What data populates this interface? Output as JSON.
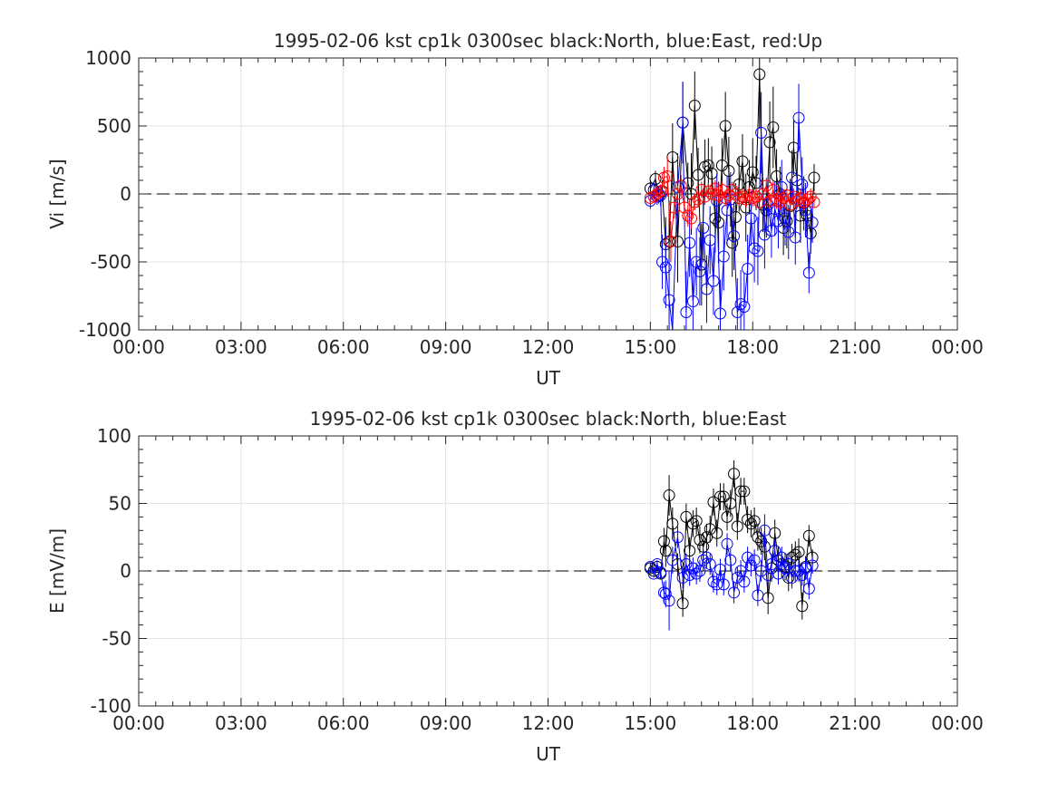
{
  "chart_data": [
    {
      "type": "scatter",
      "title": "1995-02-06 kst cp1k 0300sec black:North, blue:East, red:Up",
      "xlabel": "UT",
      "ylabel": "Vi [m/s]",
      "xlim": [
        0,
        24
      ],
      "ylim": [
        -1000,
        1000
      ],
      "xticks": [
        0,
        3,
        6,
        9,
        12,
        15,
        18,
        21,
        24
      ],
      "xtick_labels": [
        "00:00",
        "03:00",
        "06:00",
        "09:00",
        "12:00",
        "15:00",
        "18:00",
        "21:00",
        "00:00"
      ],
      "yticks": [
        -1000,
        -500,
        0,
        500,
        1000
      ],
      "ytick_labels": [
        "-1000",
        "-500",
        "0",
        "500",
        "1000"
      ],
      "grid": true,
      "zero_line": 0,
      "series": [
        {
          "color": "#000000",
          "x": [
            15.0,
            15.15,
            15.25,
            15.35,
            15.45,
            15.55,
            15.65,
            15.8,
            15.95,
            16.1,
            16.2,
            16.3,
            16.4,
            16.5,
            16.6,
            16.7,
            16.8,
            16.9,
            17.0,
            17.1,
            17.2,
            17.3,
            17.4,
            17.5,
            17.6,
            17.7,
            17.8,
            17.9,
            18.0,
            18.1,
            18.2,
            18.3,
            18.4,
            18.5,
            18.6,
            18.7,
            18.8,
            18.9,
            19.0,
            19.1,
            19.2,
            19.3,
            19.4,
            19.5,
            19.6,
            19.7,
            19.8
          ],
          "y": [
            40,
            110,
            -10,
            20,
            -370,
            -350,
            270,
            -350,
            525,
            80,
            0,
            650,
            140,
            -520,
            200,
            210,
            150,
            -180,
            -210,
            210,
            500,
            170,
            -360,
            -170,
            70,
            240,
            -100,
            50,
            160,
            80,
            880,
            -80,
            -120,
            380,
            490,
            130,
            0,
            -250,
            -200,
            -90,
            340,
            100,
            -160,
            -70,
            -160,
            -290,
            120
          ],
          "err": [
            60,
            60,
            60,
            80,
            200,
            300,
            250,
            300,
            300,
            150,
            300,
            250,
            200,
            300,
            200,
            200,
            200,
            250,
            300,
            200,
            250,
            250,
            250,
            250,
            200,
            200,
            250,
            200,
            250,
            200,
            400,
            200,
            200,
            300,
            300,
            200,
            200,
            200,
            200,
            200,
            200,
            200,
            200,
            200,
            150,
            150,
            100
          ]
        },
        {
          "color": "#0000ff",
          "x": [
            15.0,
            15.1,
            15.2,
            15.3,
            15.35,
            15.45,
            15.55,
            15.65,
            15.8,
            15.95,
            16.05,
            16.15,
            16.25,
            16.35,
            16.45,
            16.55,
            16.65,
            16.75,
            16.85,
            16.95,
            17.05,
            17.15,
            17.25,
            17.35,
            17.45,
            17.55,
            17.65,
            17.75,
            17.85,
            17.95,
            18.05,
            18.15,
            18.25,
            18.35,
            18.45,
            18.55,
            18.65,
            18.75,
            18.85,
            18.95,
            19.05,
            19.15,
            19.25,
            19.35,
            19.45,
            19.55,
            19.65,
            19.75
          ],
          "y": [
            -50,
            30,
            -20,
            -10,
            -500,
            -540,
            -780,
            -1100,
            50,
            525,
            -870,
            -360,
            -790,
            -500,
            -570,
            -250,
            -700,
            -340,
            -640,
            -50,
            -880,
            -460,
            -120,
            -40,
            -310,
            -870,
            -810,
            -830,
            -550,
            -180,
            -400,
            -420,
            450,
            -300,
            -80,
            -270,
            -110,
            -200,
            50,
            -180,
            -280,
            120,
            -320,
            560,
            70,
            -120,
            -580,
            -210
          ],
          "err": [
            60,
            60,
            60,
            80,
            200,
            300,
            300,
            300,
            250,
            300,
            300,
            250,
            300,
            250,
            250,
            250,
            250,
            250,
            250,
            200,
            250,
            250,
            250,
            200,
            250,
            250,
            250,
            250,
            250,
            200,
            250,
            250,
            300,
            250,
            200,
            200,
            200,
            200,
            200,
            200,
            200,
            200,
            200,
            250,
            200,
            200,
            150,
            150
          ]
        },
        {
          "color": "#ff0000",
          "x": [
            15.0,
            15.1,
            15.2,
            15.3,
            15.4,
            15.5,
            15.6,
            15.7,
            15.8,
            15.9,
            16.0,
            16.1,
            16.2,
            16.3,
            16.4,
            16.5,
            16.6,
            16.7,
            16.8,
            16.9,
            17.0,
            17.1,
            17.2,
            17.3,
            17.4,
            17.5,
            17.6,
            17.7,
            17.8,
            17.9,
            18.0,
            18.1,
            18.2,
            18.3,
            18.4,
            18.5,
            18.6,
            18.7,
            18.8,
            18.9,
            19.0,
            19.1,
            19.2,
            19.3,
            19.4,
            19.5,
            19.6,
            19.7,
            19.8
          ],
          "y": [
            -30,
            -20,
            0,
            20,
            120,
            130,
            -350,
            -100,
            0,
            60,
            -100,
            -160,
            -180,
            -60,
            -40,
            30,
            -20,
            20,
            0,
            40,
            -10,
            30,
            -30,
            -10,
            30,
            0,
            -30,
            -20,
            -40,
            -10,
            -30,
            -20,
            -60,
            0,
            60,
            -50,
            30,
            -50,
            -60,
            -30,
            -10,
            -80,
            -20,
            -50,
            -30,
            -60,
            -40,
            -20,
            -60
          ],
          "err": [
            40,
            40,
            40,
            50,
            80,
            150,
            150,
            80,
            60,
            80,
            80,
            80,
            80,
            60,
            60,
            60,
            60,
            60,
            60,
            60,
            60,
            60,
            60,
            60,
            60,
            60,
            60,
            60,
            60,
            60,
            60,
            60,
            60,
            60,
            60,
            60,
            60,
            60,
            60,
            60,
            60,
            60,
            60,
            60,
            60,
            60,
            60,
            60,
            40
          ]
        }
      ]
    },
    {
      "type": "scatter",
      "title": "1995-02-06 kst cp1k 0300sec black:North, blue:East",
      "xlabel": "UT",
      "ylabel": "E [mV/m]",
      "xlim": [
        0,
        24
      ],
      "ylim": [
        -100,
        100
      ],
      "xticks": [
        0,
        3,
        6,
        9,
        12,
        15,
        18,
        21,
        24
      ],
      "xtick_labels": [
        "00:00",
        "03:00",
        "06:00",
        "09:00",
        "12:00",
        "15:00",
        "18:00",
        "21:00",
        "00:00"
      ],
      "yticks": [
        -100,
        -50,
        0,
        50,
        100
      ],
      "ytick_labels": [
        "-100",
        "-50",
        "0",
        "50",
        "100"
      ],
      "grid": true,
      "zero_line": 0,
      "series": [
        {
          "color": "#000000",
          "x": [
            15.0,
            15.1,
            15.2,
            15.3,
            15.4,
            15.45,
            15.55,
            15.65,
            15.8,
            15.95,
            16.05,
            16.15,
            16.25,
            16.35,
            16.45,
            16.55,
            16.65,
            16.75,
            16.85,
            16.95,
            17.05,
            17.15,
            17.25,
            17.35,
            17.45,
            17.55,
            17.65,
            17.75,
            17.85,
            17.95,
            18.05,
            18.15,
            18.25,
            18.35,
            18.45,
            18.55,
            18.65,
            18.75,
            18.85,
            18.95,
            19.05,
            19.15,
            19.25,
            19.35,
            19.45,
            19.55,
            19.65,
            19.75
          ],
          "y": [
            2,
            0,
            3,
            -2,
            22,
            15,
            56,
            35,
            5,
            -24,
            40,
            15,
            35,
            37,
            23,
            18,
            25,
            31,
            51,
            28,
            55,
            55,
            40,
            50,
            72,
            33,
            59,
            59,
            38,
            35,
            37,
            25,
            22,
            18,
            -20,
            2,
            28,
            8,
            5,
            3,
            -5,
            10,
            12,
            14,
            -26,
            3,
            26,
            10
          ],
          "err": [
            3,
            3,
            3,
            4,
            10,
            12,
            15,
            12,
            8,
            10,
            10,
            10,
            10,
            10,
            10,
            10,
            10,
            10,
            10,
            10,
            10,
            10,
            10,
            10,
            10,
            10,
            10,
            10,
            10,
            10,
            10,
            10,
            10,
            10,
            12,
            10,
            10,
            10,
            10,
            10,
            10,
            10,
            10,
            10,
            10,
            8,
            8,
            6
          ]
        },
        {
          "color": "#0000ff",
          "x": [
            15.0,
            15.1,
            15.2,
            15.3,
            15.4,
            15.45,
            15.55,
            15.65,
            15.8,
            15.95,
            16.05,
            16.15,
            16.25,
            16.35,
            16.45,
            16.55,
            16.65,
            16.75,
            16.85,
            16.95,
            17.05,
            17.15,
            17.25,
            17.35,
            17.45,
            17.55,
            17.65,
            17.75,
            17.85,
            17.95,
            18.05,
            18.15,
            18.25,
            18.35,
            18.45,
            18.55,
            18.65,
            18.75,
            18.85,
            18.95,
            19.05,
            19.15,
            19.25,
            19.35,
            19.45,
            19.55,
            19.65,
            19.75
          ],
          "y": [
            3,
            -2,
            5,
            -1,
            -16,
            -17,
            -22,
            8,
            25,
            -5,
            5,
            -3,
            2,
            -2,
            0,
            8,
            10,
            5,
            -8,
            -10,
            1,
            -10,
            20,
            8,
            -16,
            -5,
            0,
            -8,
            10,
            4,
            8,
            -18,
            0,
            30,
            -3,
            5,
            15,
            -2,
            10,
            2,
            5,
            -5,
            0,
            0,
            -3,
            2,
            -13,
            4
          ],
          "err": [
            3,
            3,
            3,
            4,
            8,
            10,
            22,
            10,
            8,
            8,
            8,
            8,
            8,
            8,
            8,
            8,
            8,
            8,
            8,
            8,
            8,
            8,
            8,
            8,
            8,
            8,
            8,
            8,
            8,
            8,
            8,
            8,
            8,
            12,
            8,
            8,
            8,
            8,
            8,
            8,
            8,
            8,
            8,
            8,
            8,
            8,
            8,
            6
          ]
        }
      ]
    }
  ]
}
